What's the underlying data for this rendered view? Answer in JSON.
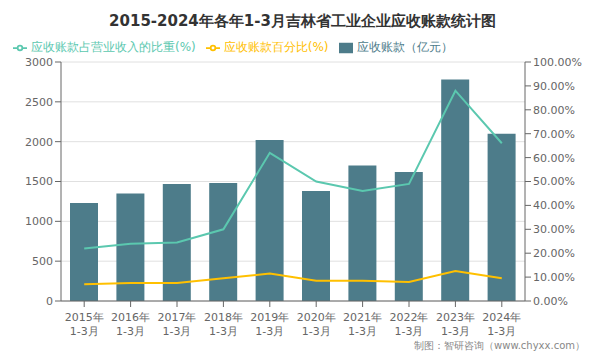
{
  "chart_data": {
    "type": "bar",
    "title": "2015-2024年各年1-3月吉林省工业企业应收账款统计图",
    "categories": [
      "2015年\n1-3月",
      "2016年\n1-3月",
      "2017年\n1-3月",
      "2018年\n1-3月",
      "2019年\n1-3月",
      "2020年\n1-3月",
      "2021年\n1-3月",
      "2022年\n1-3月",
      "2023年\n1-3月",
      "2024年\n1-3月"
    ],
    "series": [
      {
        "name": "应收账款（亿元）",
        "type": "bar",
        "color": "#4d7c8a",
        "values": [
          1230,
          1350,
          1470,
          1480,
          2020,
          1380,
          1700,
          1620,
          2780,
          2100
        ]
      },
      {
        "name": "应收账款百分比(%)",
        "type": "line",
        "axis": "y2",
        "color": "#ffc000",
        "values": [
          7.0,
          7.5,
          7.5,
          9.5,
          11.5,
          8.5,
          8.5,
          8.0,
          12.5,
          9.5
        ]
      },
      {
        "name": "应收账款占营业收入的比重(%)",
        "type": "line",
        "axis": "y2",
        "color": "#5bc8af",
        "values": [
          22.0,
          24.0,
          24.5,
          30.0,
          62.0,
          50.0,
          46.0,
          49.0,
          88.0,
          66.0
        ]
      }
    ],
    "ylim": [
      0,
      3000
    ],
    "yticks": [
      0,
      500,
      1000,
      1500,
      2000,
      2500,
      3000
    ],
    "y2lim": [
      0,
      100
    ],
    "y2ticks": [
      {
        "value": 0,
        "label": "0.00%"
      },
      {
        "value": 10,
        "label": "10.00%"
      },
      {
        "value": 20,
        "label": "20.00%"
      },
      {
        "value": 30,
        "label": "30.00%"
      },
      {
        "value": 40,
        "label": "40.00%"
      },
      {
        "value": 50,
        "label": "50.00%"
      },
      {
        "value": 60,
        "label": "60.00%"
      },
      {
        "value": 70,
        "label": "70.00%"
      },
      {
        "value": 80,
        "label": "80.00%"
      },
      {
        "value": 90,
        "label": "90.00%"
      },
      {
        "value": 100,
        "label": "100.00%"
      }
    ],
    "grid": true,
    "legend": "upper left",
    "footer": "制图：智研咨询（www.chyxx.com）"
  }
}
